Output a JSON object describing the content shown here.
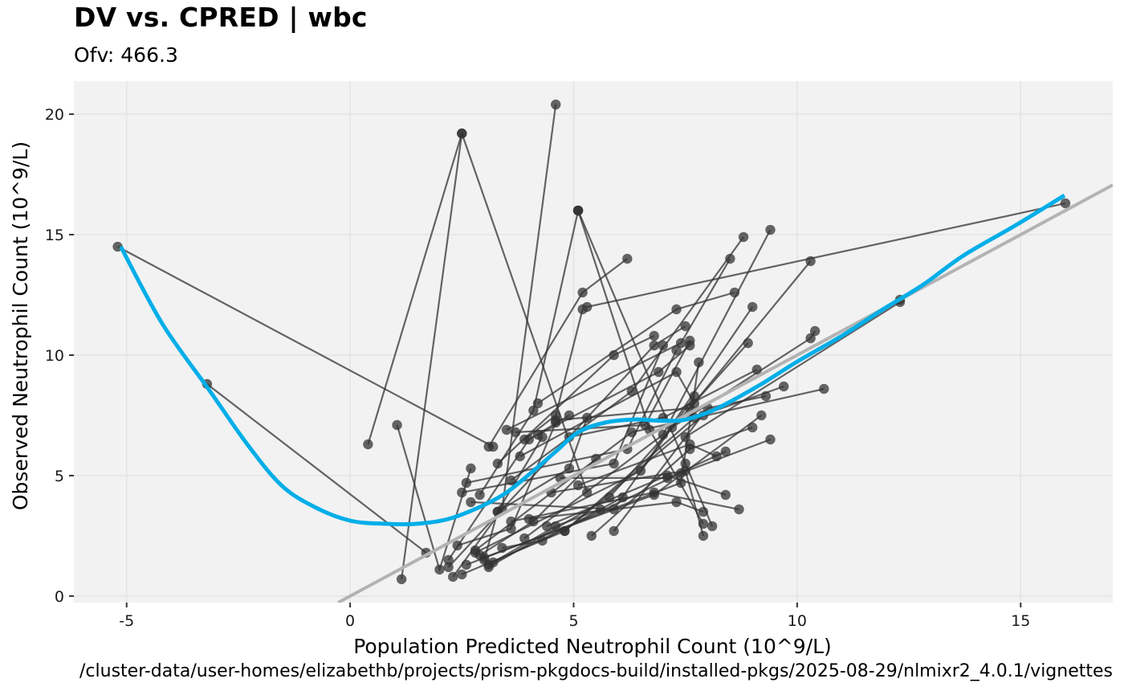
{
  "title": "DV vs. CPRED | wbc",
  "subtitle": "Ofv: 466.3",
  "caption": "/cluster-data/user-homes/elizabethb/projects/prism-pkgdocs-build/installed-pkgs/2025-08-29/nlmixr2_4.0.1/vignettes",
  "colors": {
    "panel_bg": "#f2f2f2",
    "grid": "#e3e3e3",
    "points": "#3d3d3d",
    "lines": "#4d4d4d",
    "smoother": "#00aee8",
    "identity": "#b3b3b3"
  },
  "chart_data": {
    "type": "scatter",
    "title": "DV vs. CPRED | wbc",
    "subtitle": "Ofv: 466.3",
    "xlabel": "Population Predicted Neutrophil Count (10^9/L)",
    "ylabel": "Observed Neutrophil Count (10^9/L)",
    "xlim": [
      -6.18,
      17.06
    ],
    "ylim": [
      -0.27,
      21.37
    ],
    "x_ticks": [
      -5,
      0,
      5,
      10,
      15
    ],
    "x_tick_labels": [
      "-5",
      "0",
      "5",
      "10",
      "15"
    ],
    "y_ticks": [
      0,
      5,
      10,
      15,
      20
    ],
    "y_tick_labels": [
      "0",
      "5",
      "10",
      "15",
      "20"
    ],
    "grid": true,
    "legend": "none",
    "identity_line": {
      "slope": 1,
      "intercept": 0
    },
    "smoother": {
      "x": [
        -5.13,
        -4.2,
        -3.16,
        -2.3,
        -1.54,
        -0.8,
        0,
        0.8,
        1.5,
        2.2,
        2.94,
        3.5,
        4.02,
        4.6,
        5.1,
        5.7,
        6.36,
        6.9,
        7.43,
        7.9,
        8.33,
        9.2,
        10.0,
        11.0,
        11.92,
        12.8,
        13.72,
        14.9,
        15.98
      ],
      "y": [
        14.5,
        11.3,
        8.57,
        6.3,
        4.6,
        3.7,
        3.13,
        3.0,
        3.0,
        3.2,
        3.73,
        4.3,
        5.07,
        6.0,
        6.8,
        7.2,
        7.33,
        7.28,
        7.3,
        7.55,
        7.9,
        8.8,
        9.73,
        10.8,
        11.9,
        12.9,
        14.13,
        15.4,
        16.63
      ]
    },
    "subjects": [
      {
        "x": [
          -5.2,
          3.2
        ],
        "y": [
          14.5,
          6.2
        ]
      },
      {
        "x": [
          -3.2,
          1.7
        ],
        "y": [
          8.8,
          1.8
        ]
      },
      {
        "x": [
          0.4,
          2.5,
          5.3
        ],
        "y": [
          6.3,
          19.2,
          4.3
        ]
      },
      {
        "x": [
          1.05,
          2.0,
          2.7
        ],
        "y": [
          7.1,
          1.1,
          5.3
        ]
      },
      {
        "x": [
          2.5,
          1.15
        ],
        "y": [
          19.2,
          0.7
        ]
      },
      {
        "x": [
          4.6,
          3.4,
          2.3
        ],
        "y": [
          20.4,
          3.6,
          0.8
        ]
      },
      {
        "x": [
          5.1,
          4.1,
          2.9
        ],
        "y": [
          16.0,
          7.7,
          4.2
        ]
      },
      {
        "x": [
          5.1,
          6.7,
          7.9
        ],
        "y": [
          16.0,
          6.9,
          3.0
        ]
      },
      {
        "x": [
          5.1,
          7.5,
          8.1
        ],
        "y": [
          16.0,
          5.5,
          2.9
        ]
      },
      {
        "x": [
          6.2,
          5.2,
          3.1
        ],
        "y": [
          14.0,
          12.6,
          6.2
        ]
      },
      {
        "x": [
          8.8,
          6.3,
          3.6
        ],
        "y": [
          14.9,
          8.5,
          4.8
        ]
      },
      {
        "x": [
          9.4,
          7.0,
          3.9
        ],
        "y": [
          15.2,
          6.7,
          2.4
        ]
      },
      {
        "x": [
          8.5,
          7.4,
          3.5
        ],
        "y": [
          14.0,
          10.5,
          6.9
        ]
      },
      {
        "x": [
          8.6,
          7.3,
          4.2
        ],
        "y": [
          12.6,
          11.9,
          8.0
        ]
      },
      {
        "x": [
          10.3,
          7.6,
          4.6
        ],
        "y": [
          13.9,
          7.8,
          7.3
        ]
      },
      {
        "x": [
          16.0,
          5.3
        ],
        "y": [
          16.3,
          12.0
        ]
      },
      {
        "x": [
          12.3,
          12.3,
          7.5
        ],
        "y": [
          12.3,
          12.2,
          6.6
        ]
      },
      {
        "x": [
          10.4,
          10.3,
          7.2
        ],
        "y": [
          11.0,
          10.7,
          7.0
        ]
      },
      {
        "x": [
          9.7,
          7.7,
          4.8
        ],
        "y": [
          8.7,
          7.4,
          2.7
        ]
      },
      {
        "x": [
          10.6,
          6.3,
          2.8
        ],
        "y": [
          8.6,
          6.8,
          1.9
        ]
      },
      {
        "x": [
          9.1,
          7.0,
          4.9
        ],
        "y": [
          9.4,
          7.4,
          6.6
        ]
      },
      {
        "x": [
          9.3,
          8.0,
          5.9
        ],
        "y": [
          8.3,
          7.8,
          2.7
        ]
      },
      {
        "x": [
          9.0,
          7.6,
          5.4
        ],
        "y": [
          7.0,
          6.1,
          2.5
        ]
      },
      {
        "x": [
          9.4,
          7.4,
          3.2
        ],
        "y": [
          6.5,
          5.1,
          1.4
        ]
      },
      {
        "x": [
          9.2,
          6.8,
          3.0
        ],
        "y": [
          7.5,
          4.2,
          1.6
        ]
      },
      {
        "x": [
          8.9,
          5.8,
          3.1
        ],
        "y": [
          10.5,
          4.1,
          1.2
        ]
      },
      {
        "x": [
          9.0,
          6.5,
          2.8
        ],
        "y": [
          12.0,
          5.2,
          1.8
        ]
      },
      {
        "x": [
          7.8,
          7.4,
          2.6
        ],
        "y": [
          9.7,
          4.7,
          1.3
        ]
      },
      {
        "x": [
          7.5,
          6.8,
          2.2
        ],
        "y": [
          11.2,
          10.4,
          1.2
        ]
      },
      {
        "x": [
          6.8,
          5.9,
          3.3
        ],
        "y": [
          10.8,
          10.0,
          5.5
        ]
      },
      {
        "x": [
          5.2,
          4.6,
          3.9
        ],
        "y": [
          11.9,
          7.5,
          6.5
        ]
      },
      {
        "x": [
          7.9,
          7.3,
          4.0
        ],
        "y": [
          3.5,
          3.9,
          3.2
        ]
      },
      {
        "x": [
          8.7,
          6.8,
          3.6
        ],
        "y": [
          3.6,
          4.3,
          3.1
        ]
      },
      {
        "x": [
          8.4,
          7.1,
          4.4
        ],
        "y": [
          4.2,
          5.0,
          2.9
        ]
      },
      {
        "x": [
          7.9,
          7.5,
          4.5
        ],
        "y": [
          2.5,
          5.2,
          4.3
        ]
      },
      {
        "x": [
          8.4,
          7.1,
          4.7
        ],
        "y": [
          6.0,
          4.9,
          4.9
        ]
      },
      {
        "x": [
          8.2,
          7.6,
          5.1
        ],
        "y": [
          5.8,
          6.3,
          4.6
        ]
      },
      {
        "x": [
          7.7,
          7.3,
          3.8
        ],
        "y": [
          8.0,
          9.3,
          5.8
        ]
      },
      {
        "x": [
          7.6,
          6.9,
          4.2
        ],
        "y": [
          10.4,
          9.3,
          6.7
        ]
      },
      {
        "x": [
          7.6,
          6.6,
          3.7
        ],
        "y": [
          10.6,
          7.1,
          6.8
        ]
      },
      {
        "x": [
          7.3,
          6.2,
          2.6
        ],
        "y": [
          10.2,
          6.1,
          4.7
        ]
      },
      {
        "x": [
          7.0,
          5.9,
          2.5
        ],
        "y": [
          10.4,
          5.5,
          4.3
        ]
      },
      {
        "x": [
          7.7,
          5.9,
          2.7
        ],
        "y": [
          8.3,
          3.6,
          3.9
        ]
      },
      {
        "x": [
          5.3,
          4.9,
          3.3
        ],
        "y": [
          7.4,
          5.3,
          3.5
        ]
      },
      {
        "x": [
          4.9,
          4.0,
          2.2
        ],
        "y": [
          7.5,
          6.5,
          1.5
        ]
      },
      {
        "x": [
          4.6,
          3.6,
          2.4
        ],
        "y": [
          7.2,
          2.8,
          2.1
        ]
      },
      {
        "x": [
          5.5,
          4.1,
          2.9
        ],
        "y": [
          5.7,
          3.1,
          1.7
        ]
      },
      {
        "x": [
          4.3,
          3.3,
          3.0
        ],
        "y": [
          6.6,
          3.5,
          1.5
        ]
      },
      {
        "x": [
          6.1,
          4.3,
          3.4
        ],
        "y": [
          4.1,
          2.3,
          2.0
        ]
      },
      {
        "x": [
          5.6,
          4.6,
          3.1
        ],
        "y": [
          3.6,
          2.9,
          1.3
        ]
      },
      {
        "x": [
          7.9,
          4.8,
          2.5
        ],
        "y": [
          7.5,
          2.7,
          0.9
        ]
      }
    ]
  }
}
